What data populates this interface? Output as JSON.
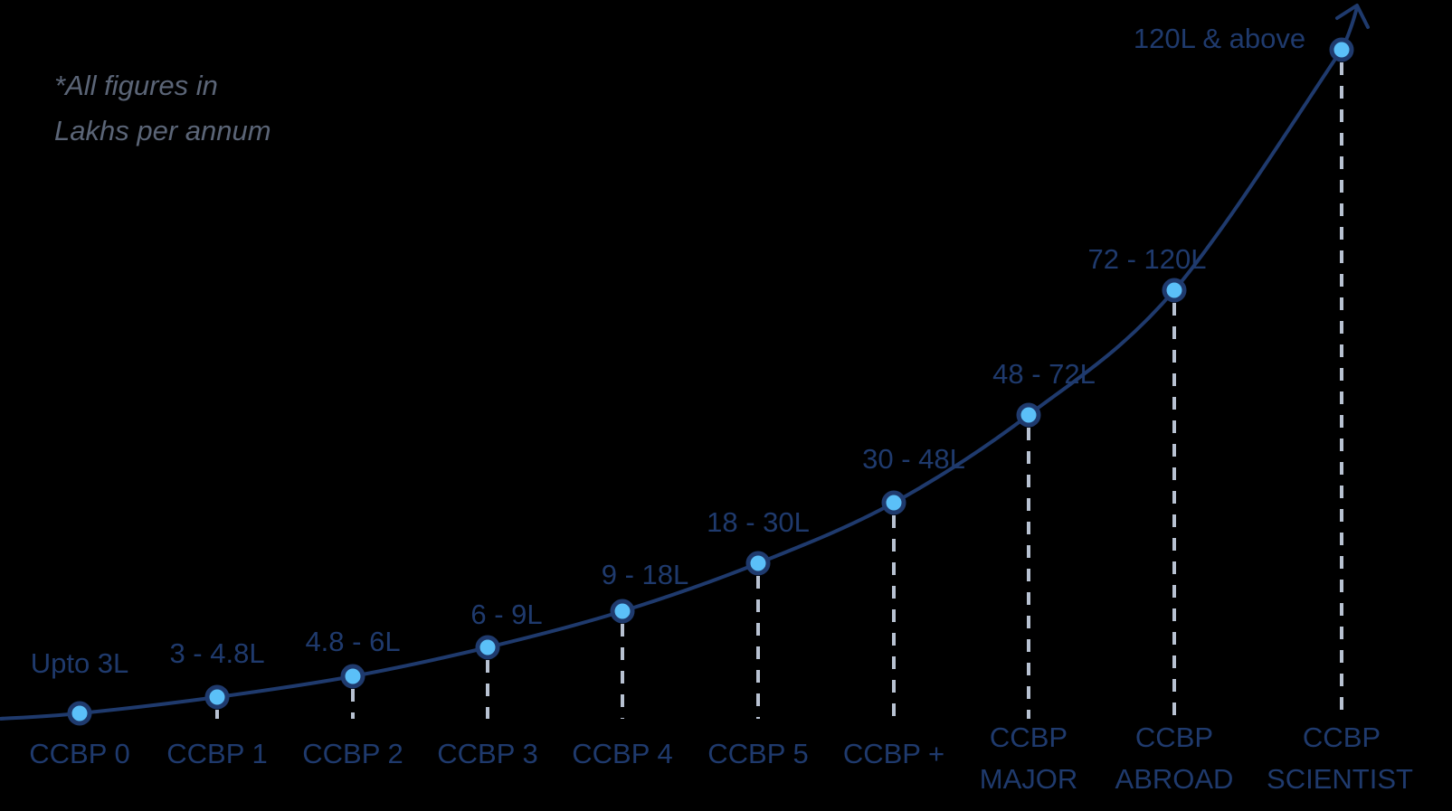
{
  "note": {
    "line1": "*All figures in",
    "line2": "Lakhs per annum"
  },
  "chart_data": {
    "type": "line",
    "title": "",
    "xlabel": "",
    "ylabel": "",
    "units_note": "*All figures in Lakhs per annum",
    "points": [
      {
        "category": [
          "CCBP 0"
        ],
        "label": "Upto 3L",
        "min": 0,
        "max": 3
      },
      {
        "category": [
          "CCBP 1"
        ],
        "label": "3 - 4.8L",
        "min": 3,
        "max": 4.8
      },
      {
        "category": [
          "CCBP 2"
        ],
        "label": "4.8 - 6L",
        "min": 4.8,
        "max": 6
      },
      {
        "category": [
          "CCBP 3"
        ],
        "label": "6 - 9L",
        "min": 6,
        "max": 9
      },
      {
        "category": [
          "CCBP 4"
        ],
        "label": "9 - 18L",
        "min": 9,
        "max": 18
      },
      {
        "category": [
          "CCBP 5"
        ],
        "label": "18 - 30L",
        "min": 18,
        "max": 30
      },
      {
        "category": [
          "CCBP +"
        ],
        "label": "30 - 48L",
        "min": 30,
        "max": 48
      },
      {
        "category": [
          "CCBP",
          "MAJOR"
        ],
        "label": "48 - 72L",
        "min": 48,
        "max": 72
      },
      {
        "category": [
          "CCBP",
          "ABROAD"
        ],
        "label": "72 - 120L",
        "min": 72,
        "max": 120
      },
      {
        "category": [
          "CCBP",
          "SCIENTIST"
        ],
        "label": "120L & above",
        "min": 120,
        "max": null
      }
    ],
    "grid": false,
    "legend": "none"
  },
  "colors": {
    "background": "#000000",
    "curve": "#1f3a6d",
    "marker_fill": "#5bc0f8",
    "marker_stroke": "#1f3a6d",
    "dash": "#b8c2d2",
    "label": "#1f3a6d",
    "note": "#5b6577"
  }
}
